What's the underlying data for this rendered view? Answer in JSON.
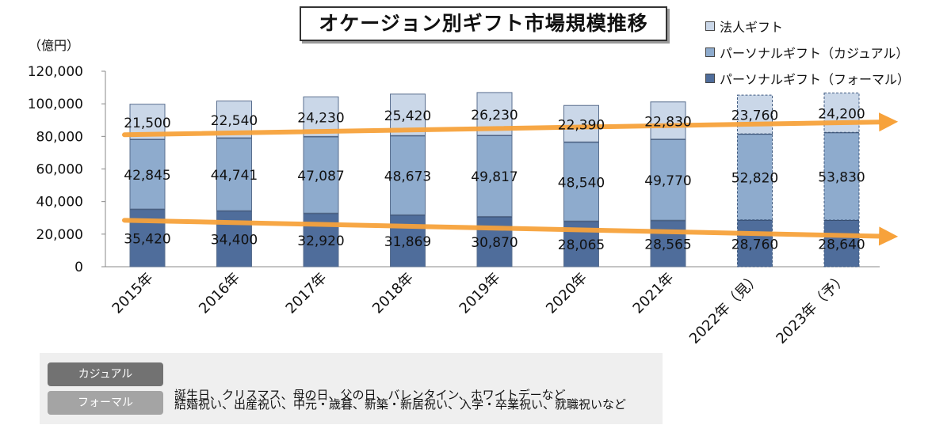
{
  "chart_data": {
    "type": "stacked-bar",
    "title": "オケージョン別ギフト市場規模推移",
    "unit_label": "（億円）",
    "categories": [
      "2015年",
      "2016年",
      "2017年",
      "2018年",
      "2019年",
      "2020年",
      "2021年",
      "2022年（見）",
      "2023年（予）"
    ],
    "projected_flags": [
      false,
      false,
      false,
      false,
      false,
      false,
      false,
      true,
      true
    ],
    "series": [
      {
        "name": "パーソナルギフト（フォーマル）",
        "color": "#4f6d9b",
        "values": [
          35420,
          34400,
          32920,
          31869,
          30870,
          28065,
          28565,
          28760,
          28640
        ],
        "labels": [
          "35,420",
          "34,400",
          "32,920",
          "31,869",
          "30,870",
          "28,065",
          "28,565",
          "28,760",
          "28,640"
        ]
      },
      {
        "name": "パーソナルギフト（カジュアル）",
        "color": "#8eabcd",
        "values": [
          42845,
          44741,
          47087,
          48673,
          49817,
          48540,
          49770,
          52820,
          53830
        ],
        "labels": [
          "42,845",
          "44,741",
          "47,087",
          "48,673",
          "49,817",
          "48,540",
          "49,770",
          "52,820",
          "53,830"
        ]
      },
      {
        "name": "法人ギフト",
        "color": "#cad7e8",
        "values": [
          21500,
          22540,
          24230,
          25420,
          26230,
          22390,
          22830,
          23760,
          24200
        ],
        "labels": [
          "21,500",
          "22,540",
          "24,230",
          "25,420",
          "26,230",
          "22,390",
          "22,830",
          "23,760",
          "24,200"
        ]
      }
    ],
    "legend_order": [
      "法人ギフト",
      "パーソナルギフト（カジュアル）",
      "パーソナルギフト（フォーマル）"
    ],
    "ylim": [
      0,
      120000
    ],
    "yticks": [
      0,
      20000,
      40000,
      60000,
      80000,
      100000,
      120000
    ],
    "ytick_labels": [
      "0",
      "20,000",
      "40,000",
      "60,000",
      "80,000",
      "100,000",
      "120,000"
    ],
    "trend_arrows": [
      {
        "from": {
          "category": 0,
          "value": 81000
        },
        "to": {
          "category": 8.65,
          "value": 89000
        },
        "color": "#f7a23b"
      },
      {
        "from": {
          "category": 0,
          "value": 28500
        },
        "to": {
          "category": 8.65,
          "value": 18500
        },
        "color": "#f7a23b"
      }
    ],
    "legend_position": "top-right",
    "grid": false
  },
  "footer": {
    "casual_label": "カジュアル",
    "formal_label": "フォーマル",
    "casual_text": "誕生日、クリスマス、母の日、父の日、バレンタイン、ホワイトデーなど",
    "formal_text": "結婚祝い、出産祝い、中元・歳暮、新築・新居祝い、入学・卒業祝い、就職祝いなど"
  }
}
